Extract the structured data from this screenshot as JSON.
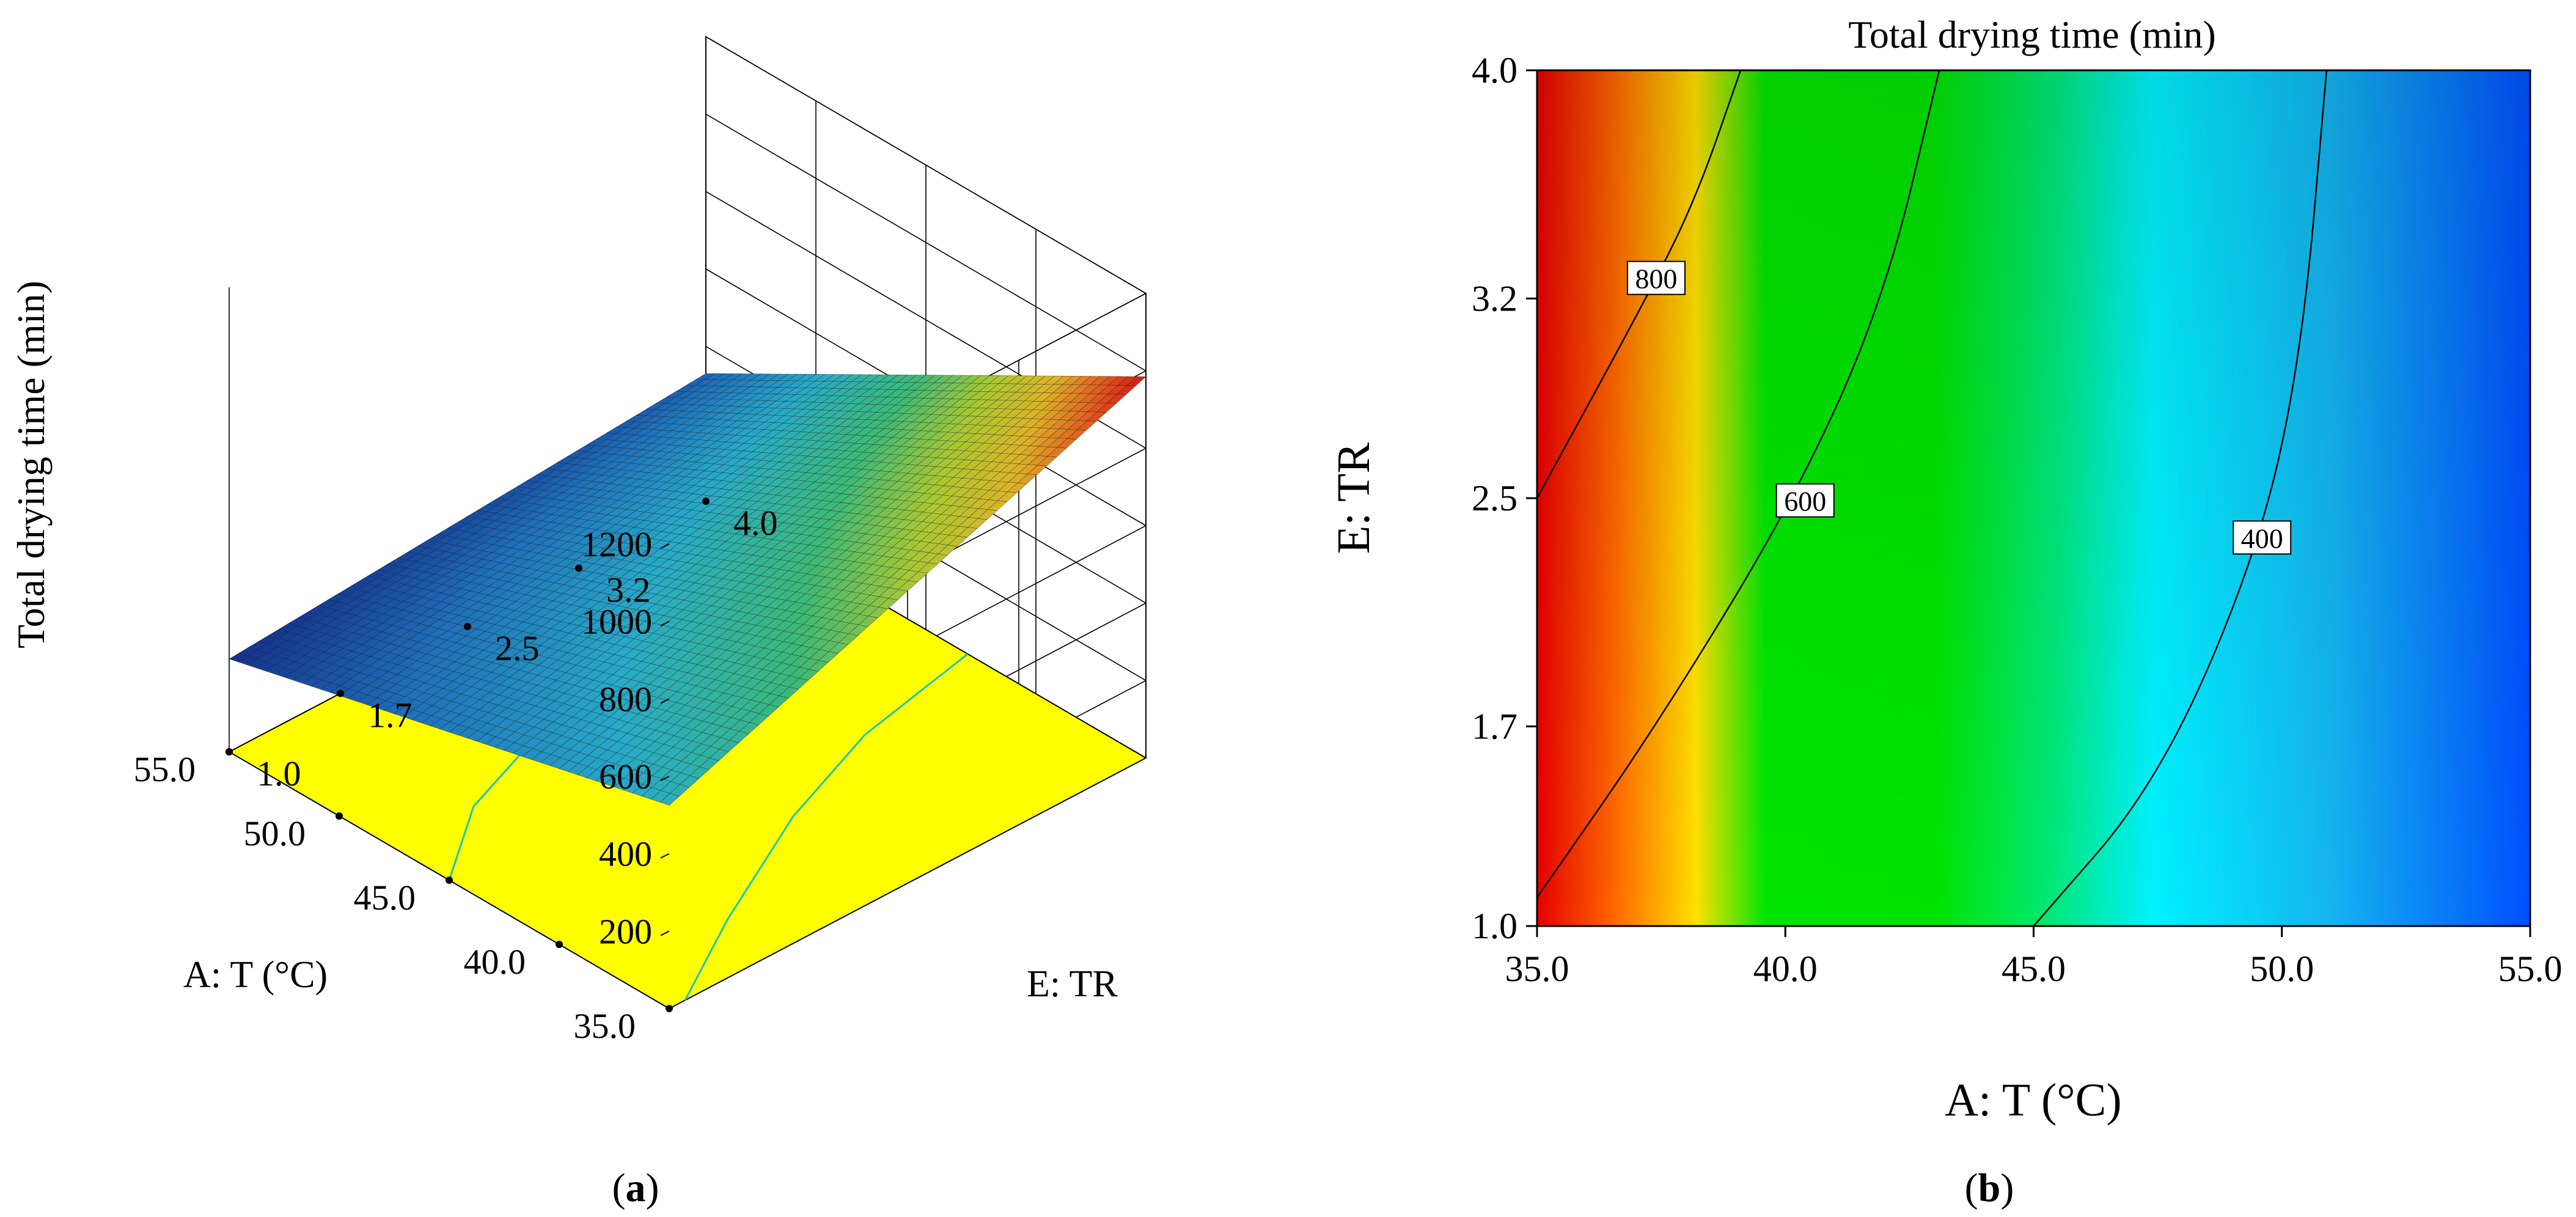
{
  "chart_data": [
    {
      "panel": "(a)",
      "panel_letter": "a",
      "type": "surface",
      "title": "",
      "zlabel": "Total drying time (min)",
      "xlabel": "A: T (°C)",
      "ylabel": "E: TR",
      "z_ticks": [
        "200",
        "400",
        "600",
        "800",
        "1000",
        "1200"
      ],
      "x_ticks": [
        "35.0",
        "40.0",
        "45.0",
        "50.0",
        "55.0"
      ],
      "y_ticks": [
        "1.0",
        "1.7",
        "2.5",
        "3.2",
        "4.0"
      ],
      "xlim": [
        35,
        55
      ],
      "ylim": [
        1,
        4
      ],
      "zlim": [
        0,
        1200
      ],
      "corner_values": [
        {
          "x": 35,
          "y": 1,
          "z": 525
        },
        {
          "x": 35,
          "y": 4,
          "z": 985
        },
        {
          "x": 55,
          "y": 1,
          "z": 240
        },
        {
          "x": 55,
          "y": 4,
          "z": 330
        }
      ],
      "floor_color": "#ffff00",
      "contour_color": "#19c8b4"
    },
    {
      "panel": "(b)",
      "panel_letter": "b",
      "type": "contour",
      "title": "Total drying time (min)",
      "xlabel": "A: T (°C)",
      "ylabel": "E: TR",
      "x_ticks": [
        "35.0",
        "40.0",
        "45.0",
        "50.0",
        "55.0"
      ],
      "y_ticks": [
        "1.0",
        "1.7",
        "2.5",
        "3.2",
        "4.0"
      ],
      "xlim": [
        35,
        55
      ],
      "ylim": [
        1,
        4
      ],
      "contour_labels": [
        "800",
        "600",
        "400"
      ],
      "contours": [
        {
          "level": 800,
          "points": [
            [
              35,
              2.5
            ],
            [
              37.2,
              3.2
            ],
            [
              38.2,
              3.55
            ],
            [
              39.1,
              4.0
            ]
          ]
        },
        {
          "level": 600,
          "points": [
            [
              35,
              1.1
            ],
            [
              37.4,
              1.7
            ],
            [
              40.2,
              2.5
            ],
            [
              42.0,
              3.2
            ],
            [
              43.1,
              4.0
            ]
          ]
        },
        {
          "level": 400,
          "points": [
            [
              45.0,
              1.0
            ],
            [
              47.5,
              1.5
            ],
            [
              49.5,
              2.3
            ],
            [
              50.4,
              3.0
            ],
            [
              50.9,
              4.0
            ]
          ]
        }
      ],
      "label_positions": [
        {
          "level": 800,
          "x": 37.4,
          "y": 3.27
        },
        {
          "level": 600,
          "x": 40.4,
          "y": 2.49
        },
        {
          "level": 400,
          "x": 49.6,
          "y": 2.36
        }
      ],
      "colormap": [
        "#ff0000",
        "#ffff00",
        "#00ff00",
        "#00ffff",
        "#0050ff"
      ]
    }
  ]
}
